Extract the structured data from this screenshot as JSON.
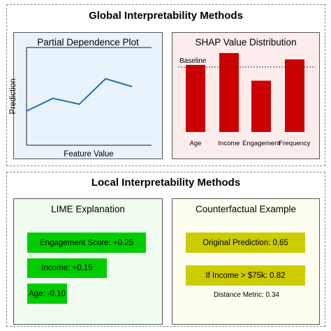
{
  "global": {
    "title": "Global Interpretability Methods",
    "pdp": {
      "title": "Partial Dependence Plot",
      "xlabel": "Feature Value",
      "ylabel": "Prediction",
      "line_color": "#1f6fbf"
    },
    "shap": {
      "title": "SHAP Value Distribution",
      "baseline_label": "Baseline",
      "bar_color": "#cc0000"
    }
  },
  "local": {
    "title": "Local Interpretability Methods",
    "lime": {
      "title": "LIME Explanation",
      "items": [
        {
          "label": "Engagement Score: +0.25",
          "value": 0.25
        },
        {
          "label": "Income: +0.15",
          "value": 0.15
        },
        {
          "label": "Age: -0.10",
          "value": -0.1
        }
      ],
      "bar_color": "#00cc00"
    },
    "counterfactual": {
      "title": "Counterfactual Example",
      "original": "Original Prediction: 0.65",
      "if_income": "If Income > $75k: 0.82",
      "distance": "Distance Metric: 0.34",
      "box_color": "#cccc00"
    }
  },
  "chart_data": [
    {
      "type": "line",
      "title": "Partial Dependence Plot",
      "xlabel": "Feature Value",
      "ylabel": "Prediction",
      "series": [
        {
          "values": [
            0.35,
            0.48,
            0.42,
            0.68,
            0.6
          ]
        }
      ]
    },
    {
      "type": "bar",
      "title": "SHAP Value Distribution",
      "categories": [
        "Age",
        "Income",
        "Engagement",
        "Frequency"
      ],
      "values": [
        0.85,
        1.0,
        0.65,
        0.92
      ],
      "annotations": [
        "Baseline"
      ]
    }
  ]
}
